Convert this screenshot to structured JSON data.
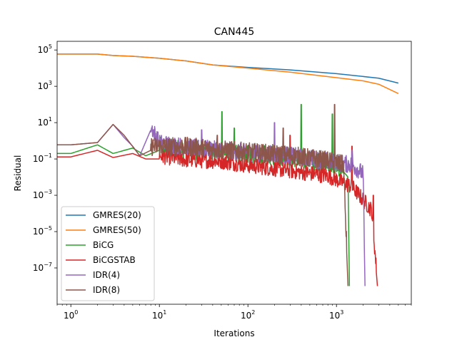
{
  "chart_data": {
    "type": "line",
    "title": "CAN445",
    "xlabel": "Iterations",
    "ylabel": "Residual",
    "xscale": "log",
    "yscale": "log",
    "xlim": [
      0.7,
      7000
    ],
    "ylim": [
      1e-09,
      300000.0
    ],
    "x_ticks": [
      {
        "value": 1,
        "base": "10",
        "exp": "0"
      },
      {
        "value": 10,
        "base": "10",
        "exp": "1"
      },
      {
        "value": 100,
        "base": "10",
        "exp": "2"
      },
      {
        "value": 1000,
        "base": "10",
        "exp": "3"
      }
    ],
    "y_ticks": [
      {
        "value": 100000.0,
        "base": "10",
        "exp": "5"
      },
      {
        "value": 1000.0,
        "base": "10",
        "exp": "3"
      },
      {
        "value": 10.0,
        "base": "10",
        "exp": "1"
      },
      {
        "value": 0.1,
        "base": "10",
        "exp": "−1"
      },
      {
        "value": 0.001,
        "base": "10",
        "exp": "−3"
      },
      {
        "value": 1e-05,
        "base": "10",
        "exp": "−5"
      },
      {
        "value": 1e-07,
        "base": "10",
        "exp": "−7"
      }
    ],
    "legend_position": "lower-left",
    "series": [
      {
        "name": "GMRES(20)",
        "color": "#1f77b4",
        "style": "smooth",
        "points": [
          [
            0.7,
            60000.0
          ],
          [
            2,
            60000.0
          ],
          [
            3,
            50000.0
          ],
          [
            5,
            45000.0
          ],
          [
            10,
            35000.0
          ],
          [
            20,
            25000.0
          ],
          [
            40,
            15000.0
          ],
          [
            100,
            11000.0
          ],
          [
            300,
            8000.0
          ],
          [
            1000,
            5000.0
          ],
          [
            3000,
            2800.0
          ],
          [
            5000,
            1500.0
          ]
        ]
      },
      {
        "name": "GMRES(50)",
        "color": "#ff7f0e",
        "style": "smooth",
        "points": [
          [
            0.7,
            60000.0
          ],
          [
            2,
            60000.0
          ],
          [
            3,
            50000.0
          ],
          [
            5,
            45000.0
          ],
          [
            10,
            35000.0
          ],
          [
            20,
            25000.0
          ],
          [
            40,
            15000.0
          ],
          [
            100,
            10000.0
          ],
          [
            300,
            6000.0
          ],
          [
            1000,
            3000.0
          ],
          [
            2000,
            2000.0
          ],
          [
            3000,
            1300.0
          ],
          [
            5000,
            400.0
          ]
        ]
      },
      {
        "name": "BiCG",
        "color": "#2ca02c",
        "style": "noisy",
        "points": [
          [
            0.7,
            0.2
          ],
          [
            1,
            0.2
          ],
          [
            2,
            0.6
          ],
          [
            3,
            0.2
          ],
          [
            5,
            0.4
          ],
          [
            7,
            0.15
          ],
          [
            10,
            0.3
          ],
          [
            20,
            0.2
          ],
          [
            50,
            0.15
          ],
          [
            100,
            0.12
          ],
          [
            300,
            0.08
          ],
          [
            800,
            0.03
          ],
          [
            1200,
            0.02
          ],
          [
            1350,
            0.01
          ],
          [
            1400,
            1e-08
          ]
        ],
        "noise_range": [
          10,
          1200
        ],
        "noise_amp": 1.3,
        "spikes": [
          [
            51,
            40
          ],
          [
            70,
            5
          ],
          [
            400,
            100
          ],
          [
            900,
            30
          ]
        ]
      },
      {
        "name": "BiCGSTAB",
        "color": "#d62728",
        "style": "noisy",
        "points": [
          [
            0.7,
            0.13
          ],
          [
            1,
            0.13
          ],
          [
            2,
            0.3
          ],
          [
            3,
            0.12
          ],
          [
            5,
            0.2
          ],
          [
            7,
            0.1
          ],
          [
            10,
            0.1
          ],
          [
            20,
            0.06
          ],
          [
            50,
            0.05
          ],
          [
            100,
            0.03
          ],
          [
            300,
            0.015
          ],
          [
            800,
            0.008
          ],
          [
            1500,
            0.002
          ],
          [
            2500,
            0.0001
          ],
          [
            2900,
            1e-08
          ]
        ],
        "noise_range": [
          10,
          2800
        ],
        "noise_amp": 1.1,
        "spikes": [
          [
            300,
            2
          ],
          [
            1500,
            0.5
          ],
          [
            2600,
            0.001
          ]
        ]
      },
      {
        "name": "IDR(4)",
        "color": "#9467bd",
        "style": "noisy",
        "points": [
          [
            0.7,
            0.6
          ],
          [
            1,
            0.6
          ],
          [
            2,
            0.8
          ],
          [
            3,
            8
          ],
          [
            4,
            1.5
          ],
          [
            5,
            0.5
          ],
          [
            6,
            0.15
          ],
          [
            8,
            4
          ],
          [
            10,
            0.5
          ],
          [
            20,
            0.3
          ],
          [
            50,
            0.2
          ],
          [
            100,
            0.15
          ],
          [
            300,
            0.1
          ],
          [
            800,
            0.05
          ],
          [
            1500,
            0.03
          ],
          [
            2000,
            0.01
          ],
          [
            2100,
            1e-08
          ]
        ],
        "noise_range": [
          8,
          2050
        ],
        "noise_amp": 1.2,
        "spikes": [
          [
            30,
            4
          ],
          [
            200,
            10
          ],
          [
            1500,
            0.3
          ]
        ]
      },
      {
        "name": "IDR(8)",
        "color": "#8c564b",
        "style": "noisy",
        "points": [
          [
            0.7,
            0.6
          ],
          [
            1,
            0.6
          ],
          [
            2,
            0.8
          ],
          [
            3,
            8
          ],
          [
            4,
            2
          ],
          [
            6,
            0.15
          ],
          [
            8,
            0.3
          ],
          [
            10,
            0.3
          ],
          [
            20,
            0.3
          ],
          [
            50,
            0.2
          ],
          [
            100,
            0.15
          ],
          [
            300,
            0.1
          ],
          [
            800,
            0.05
          ],
          [
            1200,
            0.03
          ],
          [
            1350,
            1e-08
          ]
        ],
        "noise_range": [
          8,
          1300
        ],
        "noise_amp": 1.3,
        "spikes": [
          [
            45,
            2
          ],
          [
            250,
            5
          ],
          [
            950,
            100
          ]
        ]
      }
    ]
  }
}
